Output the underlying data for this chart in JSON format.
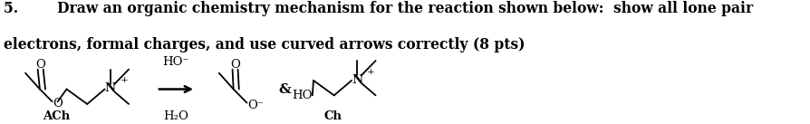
{
  "background_color": "#ffffff",
  "fig_width": 8.95,
  "fig_height": 1.37,
  "dpi": 100,
  "line1": "5.        Draw an organic chemistry mechanism for the reaction shown below:  show all lone pair",
  "line2": "electrons, formal charges, and use curved arrows correctly (8 pts)",
  "label_ACh": "ACh",
  "label_Ch": "Ch",
  "font_size_text": 11.2,
  "font_size_chem": 9.5,
  "font_size_super": 7.5,
  "font_size_label": 9.5,
  "text_color": "#000000",
  "lw": 1.3
}
